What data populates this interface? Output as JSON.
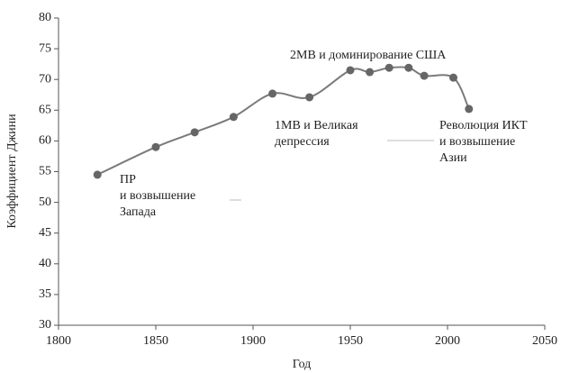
{
  "chart_data": {
    "type": "line",
    "x_label": "Год",
    "y_label": "Коэффициент Джини",
    "x": [
      1820,
      1850,
      1870,
      1890,
      1910,
      1929,
      1950,
      1960,
      1970,
      1980,
      1988,
      2003,
      2011
    ],
    "series": [
      {
        "name": "Коэффициент Джини",
        "color": "#7a7a7a",
        "values": [
          54.5,
          59,
          61.4,
          63.9,
          67.7,
          67.1,
          71.5,
          71.2,
          71.9,
          71.9,
          70.6,
          70.3,
          65.2
        ]
      }
    ],
    "xlim": [
      1800,
      2050
    ],
    "xticks": [
      1800,
      1850,
      1900,
      1950,
      2000,
      2050
    ],
    "ylim": [
      30,
      80
    ],
    "yticks": [
      30,
      35,
      40,
      45,
      50,
      55,
      60,
      65,
      70,
      75,
      80
    ],
    "grid": false,
    "annotations": [
      {
        "lines": [
          "ПР",
          "и возвышение",
          "Запада"
        ]
      },
      {
        "lines": [
          "1МВ и Великая",
          "депрессия"
        ]
      },
      {
        "lines": [
          "2МВ и доминирование США"
        ]
      },
      {
        "lines": [
          "Революция ИКТ",
          "и возвышение",
          "Азии"
        ]
      }
    ]
  }
}
